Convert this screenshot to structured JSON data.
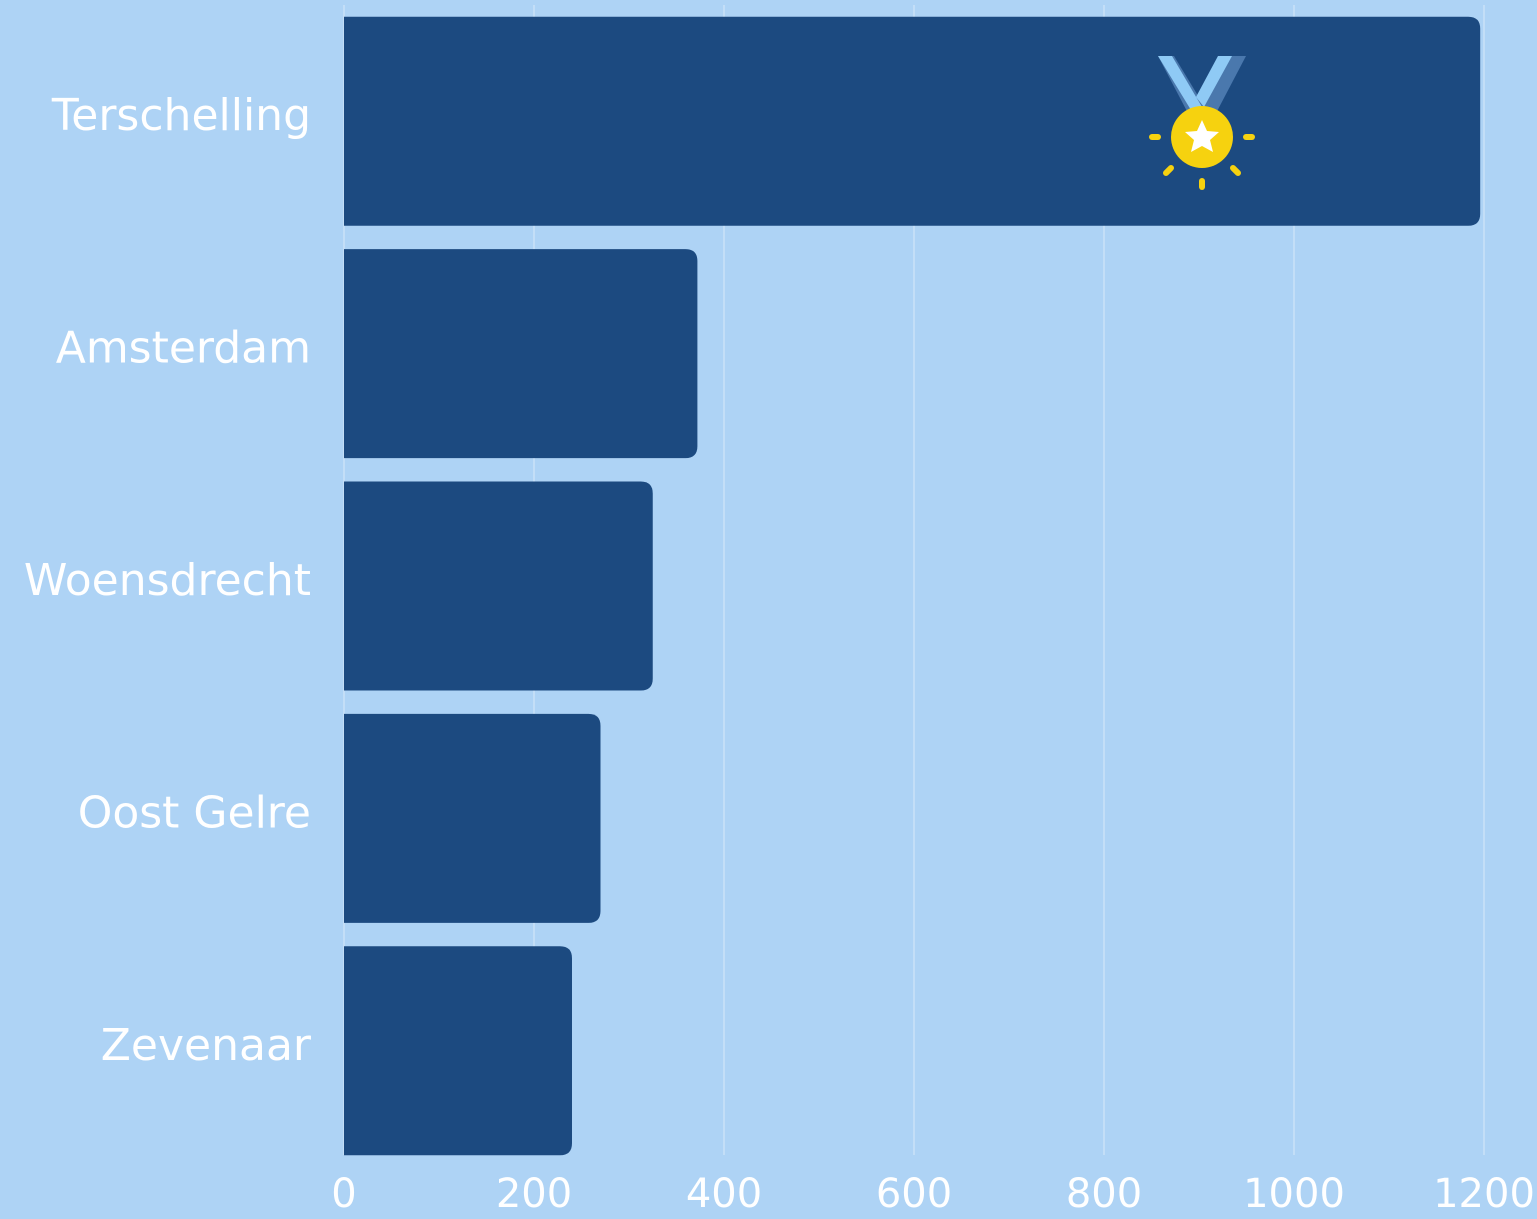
{
  "chart_data": {
    "type": "bar",
    "orientation": "horizontal",
    "categories": [
      "Terschelling",
      "Amsterdam",
      "Woensdrecht",
      "Oost Gelre",
      "Zevenaar"
    ],
    "values": [
      1196,
      372,
      325,
      270,
      240
    ],
    "color": "#1c4a80",
    "xlim": [
      0,
      1200
    ],
    "xticks": [
      0,
      200,
      400,
      600,
      800,
      1000,
      1200
    ],
    "grid": true
  }
}
